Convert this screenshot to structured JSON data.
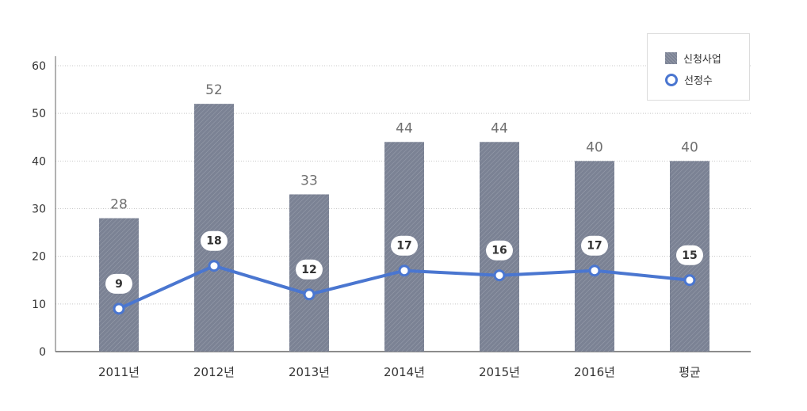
{
  "chart_data": {
    "type": "bar",
    "categories": [
      "2011년",
      "2012년",
      "2013년",
      "2014년",
      "2015년",
      "2016년",
      "평균"
    ],
    "series": [
      {
        "name": "신청사업",
        "type": "bar",
        "values": [
          28,
          52,
          33,
          44,
          44,
          40,
          40
        ]
      },
      {
        "name": "선정수",
        "type": "line",
        "values": [
          9,
          18,
          12,
          17,
          16,
          17,
          15
        ]
      }
    ],
    "ylim": [
      0,
      60
    ],
    "yticks": [
      0,
      10,
      20,
      30,
      40,
      50,
      60
    ],
    "grid": true,
    "legend_position": "top-right",
    "colors": {
      "bar": "#7b8294",
      "line": "#4a76d0",
      "bar_label": "#6f6f6f"
    }
  },
  "legend": {
    "items": [
      "신청사업",
      "선정수"
    ]
  }
}
